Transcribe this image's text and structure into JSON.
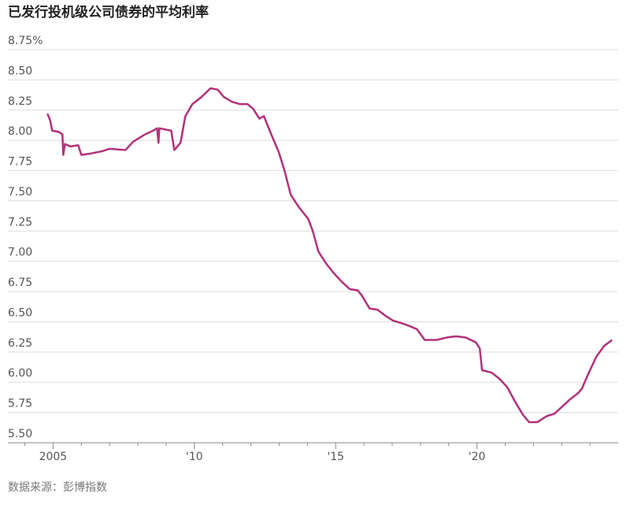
{
  "chart_data": {
    "type": "line",
    "title": "已发行投机级公司债券的平均利率",
    "source": "数据来源：彭博指数",
    "color": "#b3307a",
    "grid": true,
    "x": [
      2004.8,
      2004.89,
      2004.97,
      2005.2,
      2005.33,
      2005.36,
      2005.42,
      2005.61,
      2005.89,
      2006.0,
      2006.31,
      2006.73,
      2007.0,
      2007.56,
      2007.84,
      2008.26,
      2008.54,
      2008.68,
      2008.73,
      2008.76,
      2009.18,
      2009.29,
      2009.51,
      2009.68,
      2009.93,
      2010.21,
      2010.57,
      2010.82,
      2011.04,
      2011.32,
      2011.6,
      2011.88,
      2012.08,
      2012.3,
      2012.46,
      2012.72,
      2012.99,
      2013.19,
      2013.41,
      2013.69,
      2014.03,
      2014.19,
      2014.39,
      2014.67,
      2014.94,
      2015.22,
      2015.5,
      2015.78,
      2015.92,
      2016.2,
      2016.48,
      2016.76,
      2017.03,
      2017.45,
      2017.87,
      2018.15,
      2018.57,
      2018.93,
      2019.26,
      2019.6,
      2019.96,
      2020.1,
      2020.18,
      2020.52,
      2020.79,
      2021.07,
      2021.35,
      2021.63,
      2021.85,
      2022.13,
      2022.47,
      2022.74,
      2023.02,
      2023.3,
      2023.58,
      2023.72,
      2023.94,
      2024.22,
      2024.5,
      2024.78
    ],
    "values": [
      8.22,
      8.17,
      8.08,
      8.07,
      8.05,
      7.88,
      7.97,
      7.95,
      7.96,
      7.88,
      7.89,
      7.91,
      7.93,
      7.92,
      7.99,
      8.05,
      8.08,
      8.1,
      7.98,
      8.1,
      8.08,
      7.92,
      7.98,
      8.2,
      8.3,
      8.35,
      8.43,
      8.42,
      8.36,
      8.32,
      8.3,
      8.3,
      8.26,
      8.18,
      8.2,
      8.05,
      7.9,
      7.75,
      7.55,
      7.45,
      7.35,
      7.25,
      7.08,
      6.98,
      6.9,
      6.83,
      6.77,
      6.76,
      6.72,
      6.61,
      6.6,
      6.55,
      6.51,
      6.48,
      6.44,
      6.35,
      6.35,
      6.37,
      6.38,
      6.37,
      6.33,
      6.28,
      6.1,
      6.08,
      6.03,
      5.96,
      5.84,
      5.73,
      5.67,
      5.67,
      5.72,
      5.74,
      5.8,
      5.86,
      5.91,
      5.95,
      6.07,
      6.21,
      6.3,
      6.35
    ],
    "xlim": [
      2003.4,
      2025
    ],
    "xticks": [
      {
        "value": 2005,
        "label": "2005"
      },
      {
        "value": 2010,
        "label": "'10"
      },
      {
        "value": 2015,
        "label": "'15"
      },
      {
        "value": 2020,
        "label": "'20"
      }
    ],
    "xminorticks": [
      2004,
      2006,
      2007,
      2008,
      2009,
      2011,
      2012,
      2013,
      2014,
      2016,
      2017,
      2018,
      2019,
      2021,
      2022,
      2023,
      2024
    ],
    "ylim": [
      5.5,
      8.75
    ],
    "yticks": [
      {
        "value": 5.5,
        "label": "5.50"
      },
      {
        "value": 5.75,
        "label": "5.75"
      },
      {
        "value": 6,
        "label": "6.00"
      },
      {
        "value": 6.25,
        "label": "6.25"
      },
      {
        "value": 6.5,
        "label": "6.50"
      },
      {
        "value": 6.75,
        "label": "6.75"
      },
      {
        "value": 7,
        "label": "7.00"
      },
      {
        "value": 7.25,
        "label": "7.25"
      },
      {
        "value": 7.5,
        "label": "7.50"
      },
      {
        "value": 7.75,
        "label": "7.75"
      },
      {
        "value": 8,
        "label": "8.00"
      },
      {
        "value": 8.25,
        "label": "8.25"
      },
      {
        "value": 8.5,
        "label": "8.50"
      },
      {
        "value": 8.75,
        "label": "8.75%"
      }
    ]
  }
}
